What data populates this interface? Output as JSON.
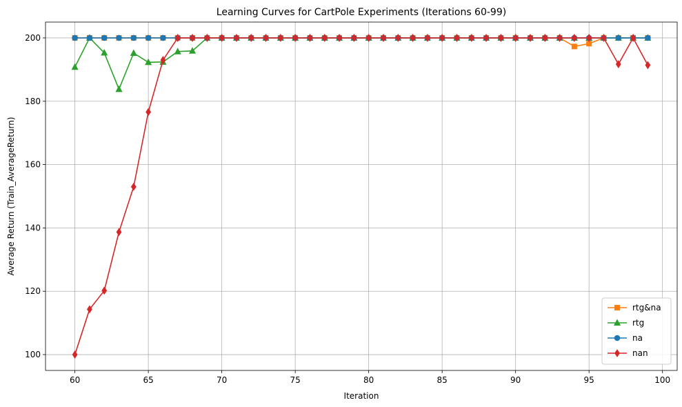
{
  "chart_data": {
    "type": "line",
    "title": "Learning Curves for CartPole Experiments (Iterations 60-99)",
    "xlabel": "Iteration",
    "ylabel": "Average Return (Train_AverageReturn)",
    "xlim": [
      58,
      101
    ],
    "ylim": [
      95,
      205
    ],
    "xticks": [
      60,
      65,
      70,
      75,
      80,
      85,
      90,
      95,
      100
    ],
    "yticks": [
      100,
      120,
      140,
      160,
      180,
      200
    ],
    "grid": true,
    "legend_position": "lower right",
    "x": [
      60,
      61,
      62,
      63,
      64,
      65,
      66,
      67,
      68,
      69,
      70,
      71,
      72,
      73,
      74,
      75,
      76,
      77,
      78,
      79,
      80,
      81,
      82,
      83,
      84,
      85,
      86,
      87,
      88,
      89,
      90,
      91,
      92,
      93,
      94,
      95,
      96,
      97,
      98,
      99
    ],
    "series": [
      {
        "name": "rtg&na",
        "color": "#ff7f0e",
        "marker": "square",
        "values": [
          200,
          200,
          200,
          200,
          200,
          200,
          200,
          200,
          200,
          200,
          200,
          200,
          200,
          200,
          200,
          200,
          200,
          200,
          200,
          200,
          200,
          200,
          200,
          200,
          200,
          200,
          200,
          200,
          200,
          200,
          200,
          200,
          200,
          200,
          197.3,
          198.2,
          200,
          200,
          200,
          200
        ]
      },
      {
        "name": "rtg",
        "color": "#2ca02c",
        "marker": "triangle",
        "values": [
          190.8,
          200,
          195.3,
          183.8,
          195.2,
          192.3,
          192.4,
          195.7,
          195.9,
          200,
          200,
          200,
          200,
          200,
          200,
          200,
          200,
          200,
          200,
          200,
          200,
          200,
          200,
          200,
          200,
          200,
          200,
          200,
          200,
          200,
          200,
          200,
          200,
          200,
          200,
          200,
          200,
          200,
          200,
          200
        ]
      },
      {
        "name": "na",
        "color": "#1f77b4",
        "marker": "circle",
        "values": [
          200,
          200,
          200,
          200,
          200,
          200,
          200,
          200,
          200,
          200,
          200,
          200,
          200,
          200,
          200,
          200,
          200,
          200,
          200,
          200,
          200,
          200,
          200,
          200,
          200,
          200,
          200,
          200,
          200,
          200,
          200,
          200,
          200,
          200,
          200,
          200,
          200,
          200,
          200,
          200
        ]
      },
      {
        "name": "nan",
        "color": "#d62728",
        "marker": "diamond",
        "values": [
          100,
          114.3,
          120.2,
          138.7,
          153,
          176.6,
          193,
          200,
          200,
          200,
          200,
          200,
          200,
          200,
          200,
          200,
          200,
          200,
          200,
          200,
          200,
          200,
          200,
          200,
          200,
          200,
          200,
          200,
          200,
          200,
          200,
          200,
          200,
          200,
          200,
          200,
          200,
          191.7,
          200,
          191.4
        ]
      }
    ]
  }
}
